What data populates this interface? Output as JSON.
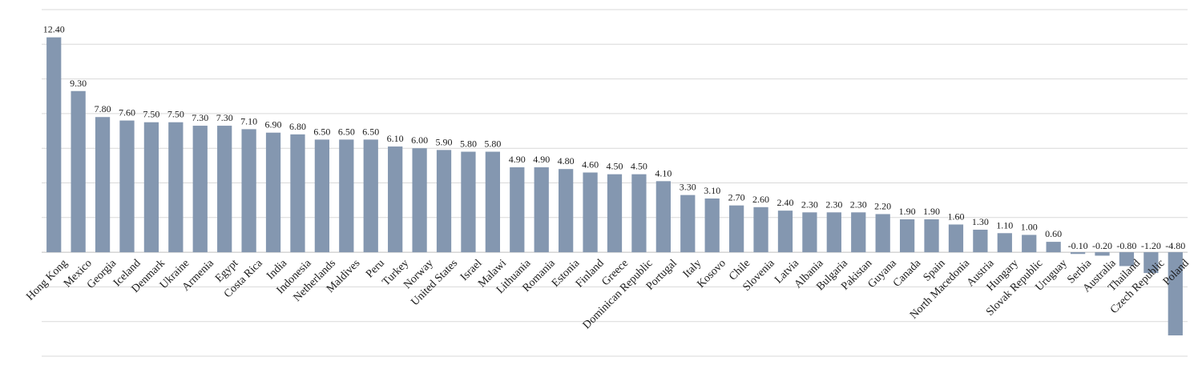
{
  "chart_data": {
    "type": "bar",
    "title": "",
    "xlabel": "",
    "ylabel": "",
    "categories": [
      "Hong Kong",
      "Mexico",
      "Georgia",
      "Iceland",
      "Denmark",
      "Ukraine",
      "Armenia",
      "Egypt",
      "Costa Rica",
      "India",
      "Indonesia",
      "Netherlands",
      "Maldives",
      "Peru",
      "Turkey",
      "Norway",
      "United States",
      "Israel",
      "Malawi",
      "Lithuania",
      "Romania",
      "Estonia",
      "Finland",
      "Greece",
      "Dominican Republic",
      "Portugal",
      "Italy",
      "Kosovo",
      "Chile",
      "Slovenia",
      "Latvia",
      "Albania",
      "Bulgaria",
      "Pakistan",
      "Guyana",
      "Canada",
      "Spain",
      "North Macedonia",
      "Austria",
      "Hungary",
      "Slovak Republic",
      "Uruguay",
      "Serbia",
      "Australia",
      "Thailand",
      "Czech Republic",
      "Poland"
    ],
    "values": [
      12.4,
      9.3,
      7.8,
      7.6,
      7.5,
      7.5,
      7.3,
      7.3,
      7.1,
      6.9,
      6.8,
      6.5,
      6.5,
      6.5,
      6.1,
      6.0,
      5.9,
      5.8,
      5.8,
      4.9,
      4.9,
      4.8,
      4.6,
      4.5,
      4.5,
      4.1,
      3.3,
      3.1,
      2.7,
      2.6,
      2.4,
      2.3,
      2.3,
      2.3,
      2.2,
      1.9,
      1.9,
      1.6,
      1.3,
      1.1,
      1.0,
      0.6,
      -0.1,
      -0.2,
      -0.8,
      -1.2,
      -4.8
    ],
    "value_labels": [
      "12.40",
      "9.30",
      "7.80",
      "7.60",
      "7.50",
      "7.50",
      "7.30",
      "7.30",
      "7.10",
      "6.90",
      "6.80",
      "6.50",
      "6.50",
      "6.50",
      "6.10",
      "6.00",
      "5.90",
      "5.80",
      "5.80",
      "4.90",
      "4.90",
      "4.80",
      "4.60",
      "4.50",
      "4.50",
      "4.10",
      "3.30",
      "3.10",
      "2.70",
      "2.60",
      "2.40",
      "2.30",
      "2.30",
      "2.30",
      "2.20",
      "1.90",
      "1.90",
      "1.60",
      "1.30",
      "1.10",
      "1.00",
      "0.60",
      "-0.10",
      "-0.20",
      "-0.80",
      "-1.20",
      "-4.80"
    ],
    "ylim": [
      -6,
      14
    ],
    "y_grid_step": 2,
    "grid": true,
    "legend": "none",
    "bar_color": "#8497b0"
  }
}
